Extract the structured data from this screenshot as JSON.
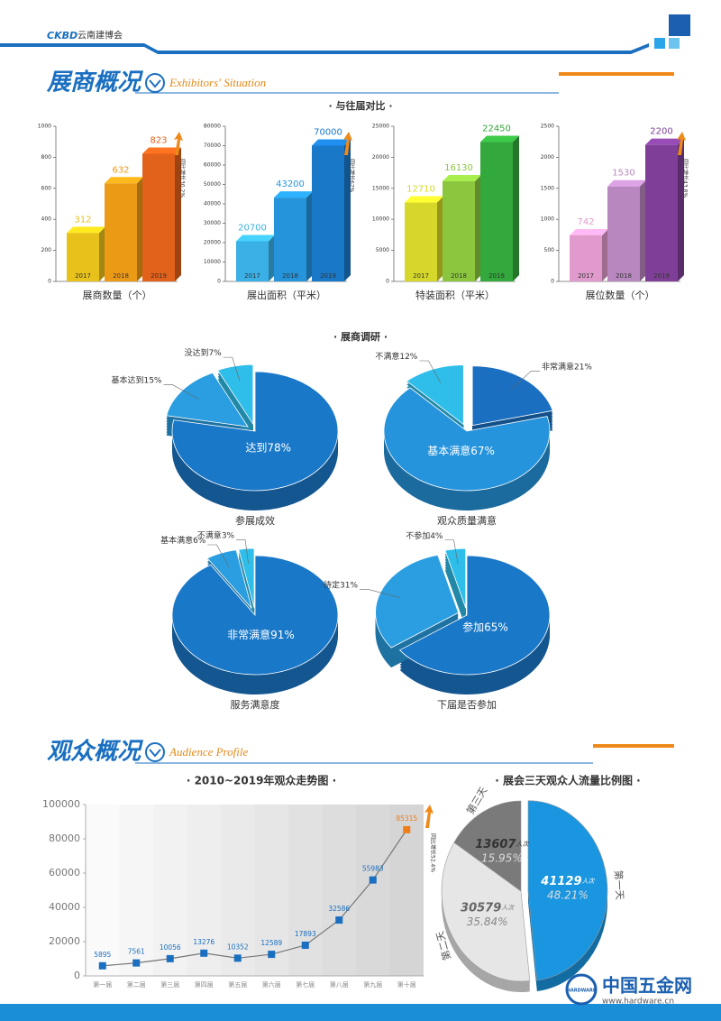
{
  "header": {
    "logo": "CKBD",
    "name": "云南建博会"
  },
  "sections": [
    {
      "title": "展商概况",
      "subtitle": "Exhibitors' Situation"
    },
    {
      "title": "观众概况",
      "subtitle": "Audience Profile"
    }
  ],
  "groups": [
    "· 与往届对比 ·",
    "· 展商调研 ·"
  ],
  "chart_data": [
    {
      "type": "bar",
      "xlabel": "展商数量（个）",
      "categories": [
        "2017",
        "2018",
        "2019"
      ],
      "values": [
        312,
        632,
        823
      ],
      "colors": [
        "#e8c21a",
        "#eb9a16",
        "#e2611b"
      ],
      "ylim": [
        0,
        1000
      ],
      "yticks": [
        0,
        200,
        400,
        600,
        800,
        1000
      ],
      "annotation": "同比增长30.2%"
    },
    {
      "type": "bar",
      "xlabel": "展出面积（平米）",
      "categories": [
        "2017",
        "2018",
        "2019"
      ],
      "values": [
        20700,
        43200,
        70000
      ],
      "colors": [
        "#3ab0e6",
        "#2594da",
        "#1a78c8"
      ],
      "ylim": [
        0,
        80000
      ],
      "yticks": [
        0,
        10000,
        20000,
        30000,
        40000,
        50000,
        60000,
        70000,
        80000
      ],
      "annotation": "同比增长62%"
    },
    {
      "type": "bar",
      "xlabel": "特装面积（平米）",
      "categories": [
        "2017",
        "2018",
        "2019"
      ],
      "values": [
        12710,
        16130,
        22450
      ],
      "colors": [
        "#d5d82a",
        "#8cc63f",
        "#33a83c"
      ],
      "ylim": [
        0,
        25000
      ],
      "yticks": [
        0,
        5000,
        10000,
        15000,
        20000,
        25000
      ]
    },
    {
      "type": "bar",
      "xlabel": "展位数量（个）",
      "categories": [
        "2017",
        "2018",
        "2019"
      ],
      "values": [
        742,
        1530,
        2200
      ],
      "colors": [
        "#e09acb",
        "#b987c0",
        "#7f3f98"
      ],
      "ylim": [
        0,
        2500
      ],
      "yticks": [
        0,
        500,
        1000,
        1500,
        2000,
        2500
      ],
      "annotation": "同比增长43.8%"
    },
    {
      "type": "pie",
      "title": "参展成效",
      "categories": [
        "达到",
        "基本达到",
        "没达到"
      ],
      "values": [
        78,
        15,
        7
      ],
      "value_labels": [
        "78%",
        "15%",
        "7%"
      ],
      "colors": [
        "#1a78c8",
        "#2a9ee0",
        "#2fbdea"
      ]
    },
    {
      "type": "pie",
      "title": "观众质量满意",
      "categories": [
        "非常满意",
        "基本满意",
        "不满意"
      ],
      "values": [
        21,
        67,
        12
      ],
      "value_labels": [
        "21%",
        "67%",
        "12%"
      ],
      "colors": [
        "#1a6fc0",
        "#2694dc",
        "#2fbdea"
      ]
    },
    {
      "type": "pie",
      "title": "服务满意度",
      "categories": [
        "非常满意",
        "基本满意",
        "不满意"
      ],
      "values": [
        91,
        6,
        3
      ],
      "value_labels": [
        "91%",
        "6%",
        "3%"
      ],
      "colors": [
        "#1a78c8",
        "#2a9ee0",
        "#2fbdea"
      ]
    },
    {
      "type": "pie",
      "title": "下届是否参加",
      "categories": [
        "参加",
        "待定",
        "不参加"
      ],
      "values": [
        65,
        31,
        4
      ],
      "value_labels": [
        "65%",
        "31%",
        "4%"
      ],
      "colors": [
        "#1a78c8",
        "#2a9ee0",
        "#2fbdea"
      ]
    },
    {
      "type": "line",
      "title": "· 2010~2019年观众走势图 ·",
      "categories": [
        "第一届",
        "第二届",
        "第三届",
        "第四届",
        "第五届",
        "第六届",
        "第七届",
        "第八届",
        "第九届",
        "第十届"
      ],
      "values": [
        5895,
        7561,
        10056,
        13276,
        10352,
        12589,
        17893,
        32586,
        55983,
        85315
      ],
      "color": "#1a6fc0",
      "highlight_color": "#ef7d1a",
      "ylim": [
        0,
        100000
      ],
      "yticks": [
        0,
        20000,
        40000,
        60000,
        80000,
        100000
      ],
      "annotation": "同比增长52.4%"
    },
    {
      "type": "pie",
      "title": "· 展会三天观众人流量比例图 ·",
      "categories": [
        "第一天",
        "第二天",
        "第三天"
      ],
      "values": [
        48.21,
        35.84,
        15.95
      ],
      "value_labels": [
        "48.21%",
        "35.84%",
        "15.95%"
      ],
      "counts": [
        41129,
        30579,
        13607
      ],
      "unit": "人次",
      "colors": [
        "#1a96e0",
        "#e6e6e6",
        "#7a7a7a"
      ]
    }
  ],
  "footer": {
    "site": "中国五金网",
    "url": "www.hardware.cn",
    "badge": "HARDWARE"
  }
}
